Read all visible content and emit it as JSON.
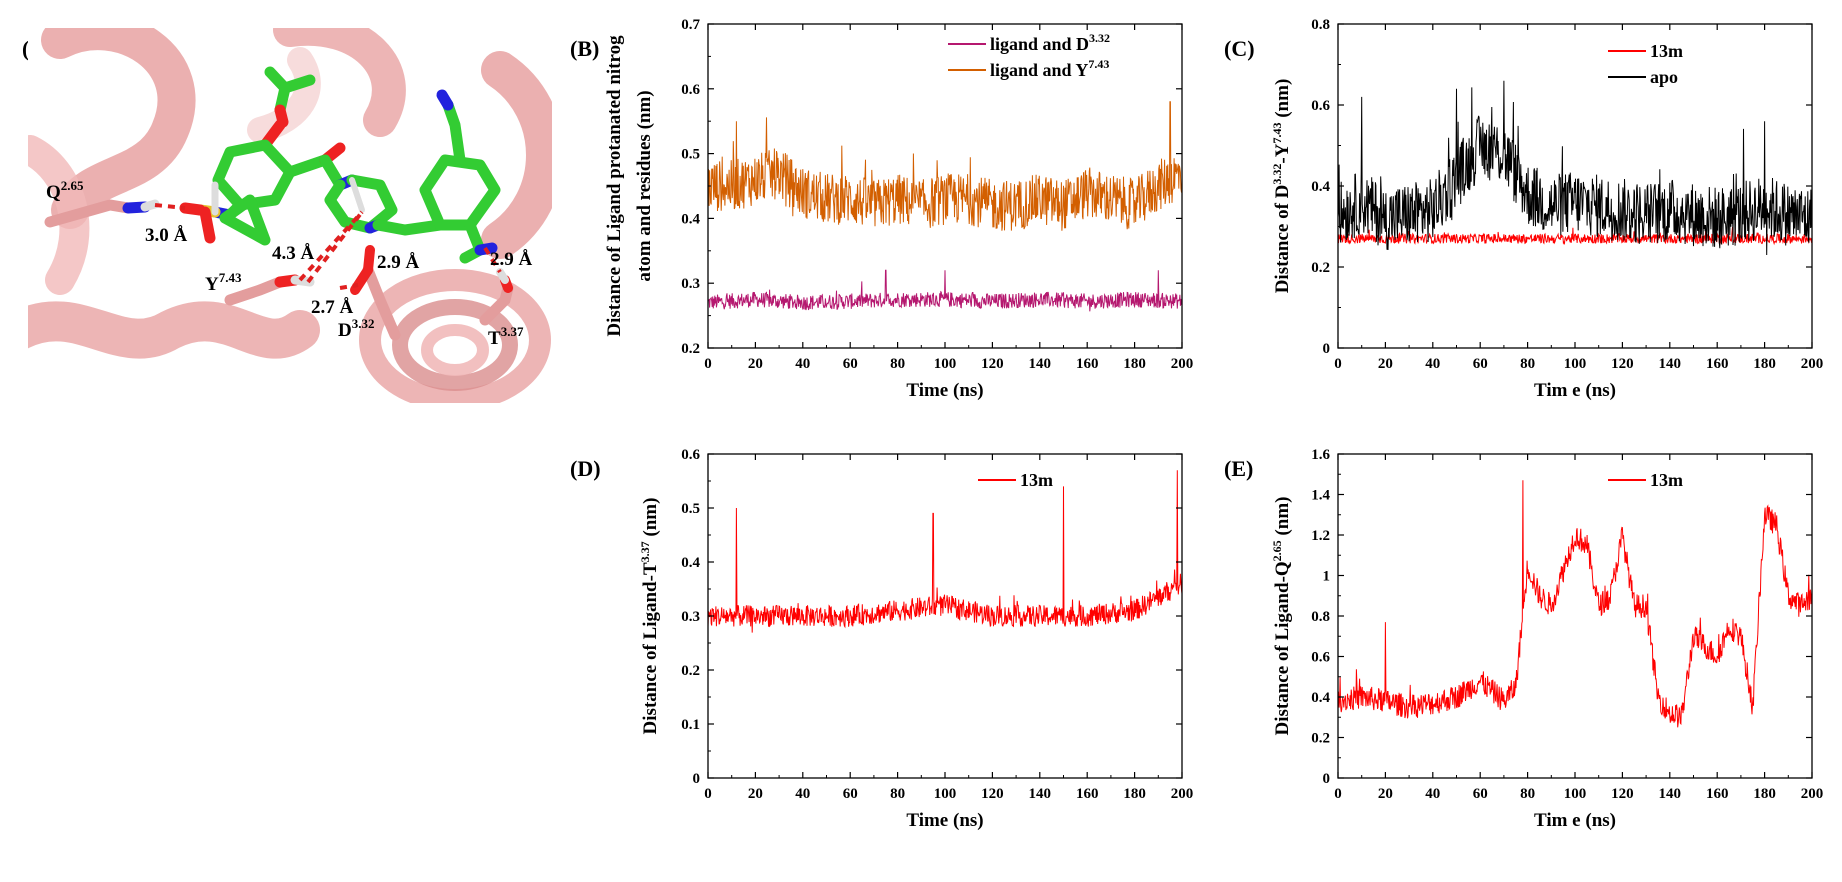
{
  "panels": {
    "A": {
      "label": "(A)",
      "residues": [
        {
          "name": "Q",
          "sup": "2.65"
        },
        {
          "name": "Y",
          "sup": "7.43"
        },
        {
          "name": "D",
          "sup": "3.32"
        },
        {
          "name": "T",
          "sup": "3.37"
        }
      ],
      "distances": [
        "3.0 Å",
        "4.3 Å",
        "2.9 Å",
        "2.7 Å",
        "2.9 Å"
      ],
      "colors": {
        "ribbon": "#e8a2a2",
        "carbon": "#33cc33",
        "nitrogen": "#2222dd",
        "oxygen": "#ee2222",
        "sulfur": "#e6c22e",
        "hbond": "#e02020"
      }
    }
  },
  "chart_data": [
    {
      "id": "B",
      "label": "(B)",
      "type": "line",
      "xlabel": "Time (ns)",
      "ylabel_lines": [
        "Distance of Ligand protanated nitrog",
        "atom and residues (nm)"
      ],
      "xlim": [
        0,
        200
      ],
      "ylim": [
        0.2,
        0.7
      ],
      "xticks": [
        0,
        20,
        40,
        60,
        80,
        100,
        120,
        140,
        160,
        180,
        200
      ],
      "yticks": [
        0.2,
        0.3,
        0.4,
        0.5,
        0.6,
        0.7
      ],
      "ytick_labels": [
        "0.2",
        "0.3",
        "0.4",
        "0.5",
        "0.6",
        "0.7"
      ],
      "legend_position": "top-right",
      "series": [
        {
          "name": "ligand and D",
          "name_sup": "3.32",
          "color": "#b5186f",
          "baseline": 0.272,
          "noise": 0.012,
          "spikes": [
            [
              75,
              0.32
            ],
            [
              100,
              0.32
            ],
            [
              190,
              0.32
            ]
          ],
          "x": [
            0,
            20,
            40,
            60,
            80,
            100,
            120,
            140,
            160,
            180,
            200
          ],
          "y": [
            0.27,
            0.275,
            0.27,
            0.272,
            0.275,
            0.275,
            0.272,
            0.275,
            0.272,
            0.275,
            0.272
          ]
        },
        {
          "name": "ligand and Y",
          "name_sup": "7.43",
          "color": "#d35f00",
          "baseline": 0.44,
          "noise": 0.04,
          "spikes": [
            [
              12,
              0.55
            ],
            [
              195,
              0.58
            ]
          ],
          "x": [
            0,
            10,
            20,
            30,
            40,
            50,
            60,
            70,
            80,
            90,
            100,
            110,
            120,
            130,
            140,
            150,
            160,
            170,
            180,
            190,
            200
          ],
          "y": [
            0.45,
            0.45,
            0.46,
            0.47,
            0.44,
            0.43,
            0.43,
            0.42,
            0.43,
            0.42,
            0.43,
            0.43,
            0.42,
            0.42,
            0.43,
            0.42,
            0.44,
            0.43,
            0.42,
            0.45,
            0.47
          ]
        }
      ]
    },
    {
      "id": "C",
      "label": "(C)",
      "type": "line",
      "xlabel": "Tim e (ns)",
      "ylabel_lines": [
        "Distance of D",
        "3.32",
        "-Y",
        "7.43",
        " (nm)"
      ],
      "xlim": [
        0,
        200
      ],
      "ylim": [
        0,
        0.8
      ],
      "xticks": [
        0,
        20,
        40,
        60,
        80,
        100,
        120,
        140,
        160,
        180,
        200
      ],
      "yticks": [
        0,
        0.2,
        0.4,
        0.6,
        0.8
      ],
      "ytick_labels": [
        "0",
        "0.2",
        "0.4",
        "0.6",
        "0.8"
      ],
      "legend_position": "top-right",
      "series": [
        {
          "name": "13m",
          "color": "#ff0000",
          "baseline": 0.27,
          "noise": 0.012,
          "spikes": [],
          "x": [
            0,
            50,
            100,
            150,
            200
          ],
          "y": [
            0.27,
            0.27,
            0.27,
            0.27,
            0.27
          ]
        },
        {
          "name": "apo",
          "color": "#000000",
          "baseline": 0.33,
          "noise": 0.08,
          "spikes": [
            [
              10,
              0.62
            ],
            [
              50,
              0.64
            ],
            [
              70,
              0.66
            ],
            [
              180,
              0.56
            ]
          ],
          "x": [
            0,
            10,
            20,
            30,
            40,
            50,
            60,
            70,
            80,
            90,
            100,
            110,
            120,
            130,
            140,
            150,
            160,
            170,
            180,
            190,
            200
          ],
          "y": [
            0.33,
            0.36,
            0.32,
            0.33,
            0.34,
            0.42,
            0.5,
            0.48,
            0.38,
            0.35,
            0.36,
            0.35,
            0.34,
            0.33,
            0.34,
            0.33,
            0.32,
            0.33,
            0.35,
            0.33,
            0.32
          ]
        }
      ]
    },
    {
      "id": "D",
      "label": "(D)",
      "type": "line",
      "xlabel": "Time (ns)",
      "ylabel_lines": [
        "Distance of Ligand-T",
        "3.37",
        " (nm)"
      ],
      "xlim": [
        0,
        200
      ],
      "ylim": [
        0,
        0.6
      ],
      "xticks": [
        0,
        20,
        40,
        60,
        80,
        100,
        120,
        140,
        160,
        180,
        200
      ],
      "yticks": [
        0,
        0.1,
        0.2,
        0.3,
        0.4,
        0.5,
        0.6
      ],
      "ytick_labels": [
        "0",
        "0.1",
        "0.2",
        "0.3",
        "0.4",
        "0.5",
        "0.6"
      ],
      "legend_position": "top-right",
      "series": [
        {
          "name": "13m",
          "color": "#ff0000",
          "baseline": 0.3,
          "noise": 0.02,
          "spikes": [
            [
              12,
              0.5
            ],
            [
              95,
              0.49
            ],
            [
              150,
              0.54
            ],
            [
              198,
              0.57
            ]
          ],
          "x": [
            0,
            20,
            40,
            60,
            80,
            100,
            120,
            140,
            160,
            180,
            200
          ],
          "y": [
            0.3,
            0.3,
            0.3,
            0.3,
            0.31,
            0.32,
            0.3,
            0.3,
            0.3,
            0.31,
            0.36
          ]
        }
      ]
    },
    {
      "id": "E",
      "label": "(E)",
      "type": "line",
      "xlabel": "Tim e (ns)",
      "ylabel_lines": [
        "Distance of Ligand-Q",
        "2.65",
        " (nm)"
      ],
      "xlim": [
        0,
        200
      ],
      "ylim": [
        0,
        1.6
      ],
      "xticks": [
        0,
        20,
        40,
        60,
        80,
        100,
        120,
        140,
        160,
        180,
        200
      ],
      "yticks": [
        0,
        0.2,
        0.4,
        0.6,
        0.8,
        1,
        1.2,
        1.4,
        1.6
      ],
      "ytick_labels": [
        "0",
        "0.2",
        "0.4",
        "0.6",
        "0.8",
        "1",
        "1.2",
        "1.4",
        "1.6"
      ],
      "legend_position": "top-right",
      "series": [
        {
          "name": "13m",
          "color": "#ff0000",
          "baseline": 0,
          "noise": 0.06,
          "spikes": [
            [
              20,
              0.77
            ],
            [
              78,
              1.47
            ]
          ],
          "x": [
            0,
            10,
            20,
            30,
            40,
            50,
            60,
            70,
            75,
            80,
            85,
            90,
            100,
            105,
            110,
            115,
            120,
            125,
            130,
            135,
            140,
            145,
            150,
            155,
            160,
            165,
            170,
            175,
            180,
            185,
            190,
            195,
            200
          ],
          "y": [
            0.38,
            0.4,
            0.38,
            0.35,
            0.37,
            0.4,
            0.48,
            0.38,
            0.45,
            1.05,
            0.9,
            0.85,
            1.2,
            1.15,
            0.85,
            0.9,
            1.2,
            0.85,
            0.85,
            0.4,
            0.32,
            0.3,
            0.7,
            0.65,
            0.6,
            0.75,
            0.7,
            0.35,
            1.3,
            1.25,
            0.9,
            0.85,
            0.9
          ]
        }
      ]
    }
  ]
}
